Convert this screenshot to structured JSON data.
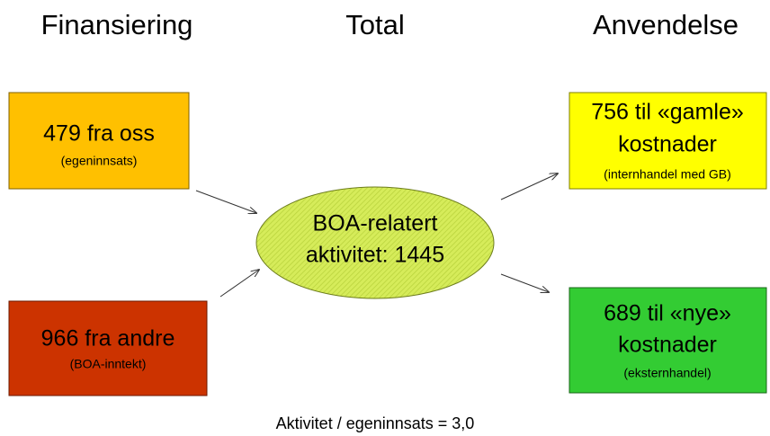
{
  "headers": [
    "Finansiering",
    "Total",
    "Anvendelse"
  ],
  "nodes": [
    {
      "label": "479 fra oss",
      "note": "(egeninnsats)"
    },
    {
      "label": "966 fra andre",
      "note": "(BOA-inntekt)"
    },
    {
      "label": "BOA-relatert",
      "label2": "aktivitet: 1445"
    },
    {
      "label": "756 til «gamle»",
      "label2": "kostnader",
      "note": "(internhandel med GB)"
    },
    {
      "label": "689 til «nye»",
      "label2": "kostnader",
      "note": "(eksternhandel)"
    }
  ],
  "footer": "Aktivitet / egeninnsats = 3,0"
}
